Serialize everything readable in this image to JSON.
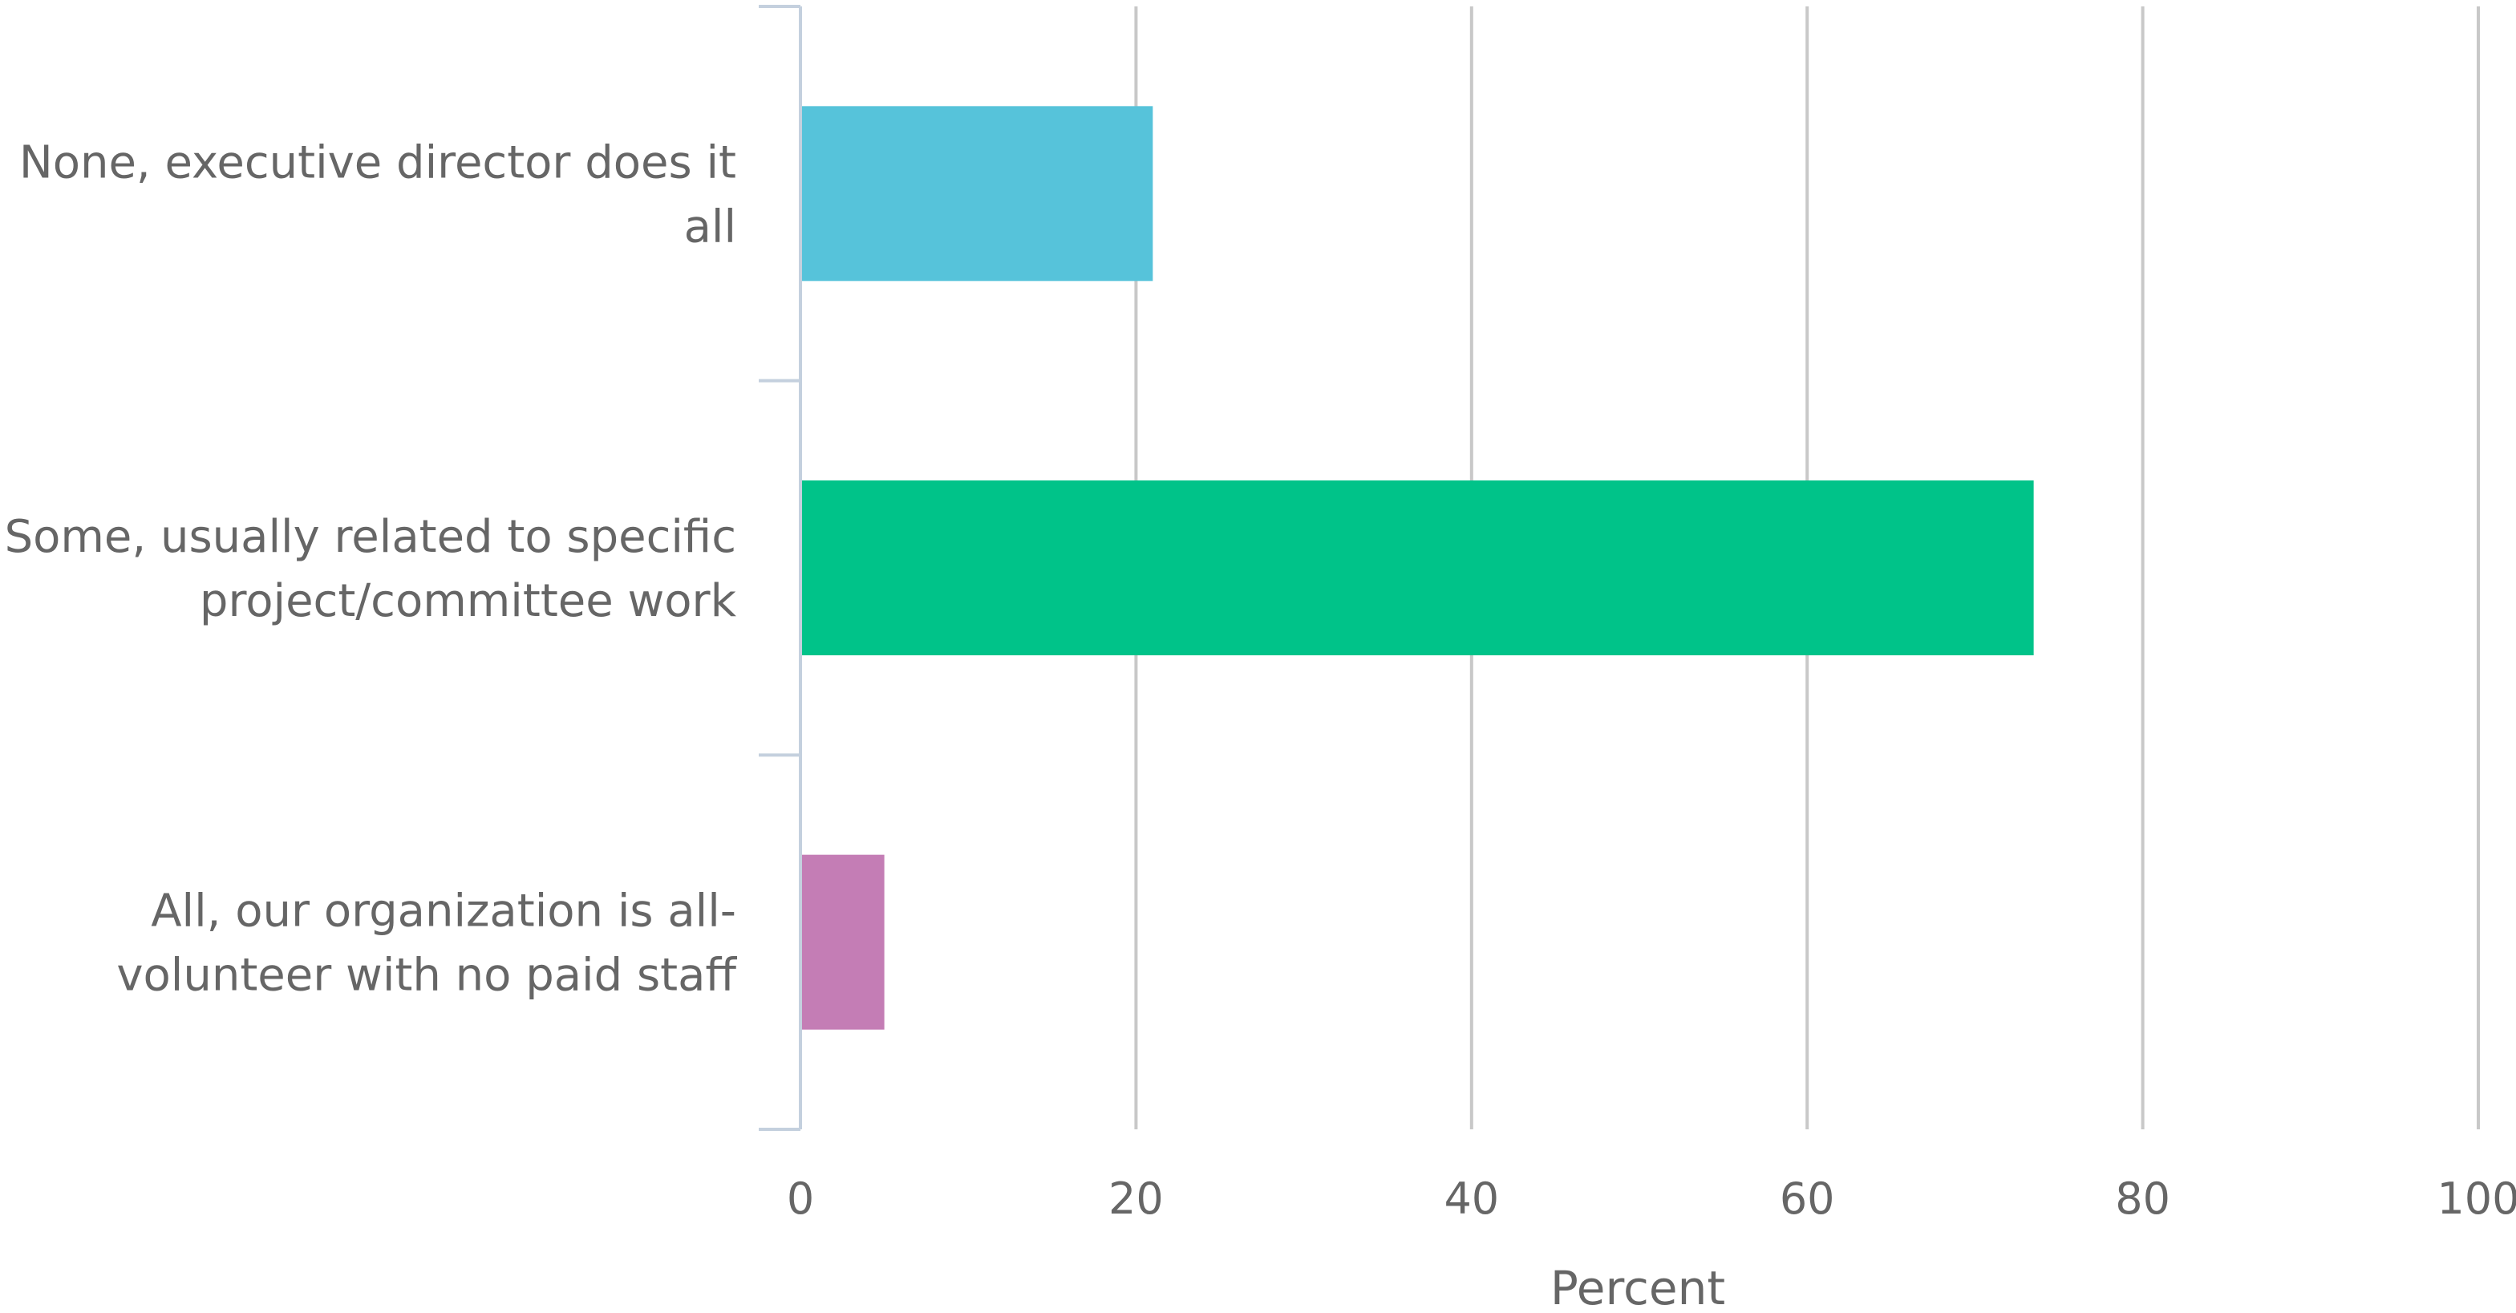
{
  "chart_data": {
    "type": "bar",
    "orientation": "horizontal",
    "categories": [
      [
        "None, executive director does it",
        "all"
      ],
      [
        "Some, usually related to specific",
        "project/committee work"
      ],
      [
        "All, our organization is all-",
        "volunteer with no paid staff"
      ]
    ],
    "values": [
      21,
      73.5,
      5
    ],
    "colors": [
      "#56c3da",
      "#00c389",
      "#c47db5"
    ],
    "xlabel": "Percent",
    "xlim": [
      0,
      100
    ],
    "xticks": [
      "0",
      "20",
      "40",
      "60",
      "80",
      "100"
    ],
    "grid": true,
    "legend": false
  }
}
